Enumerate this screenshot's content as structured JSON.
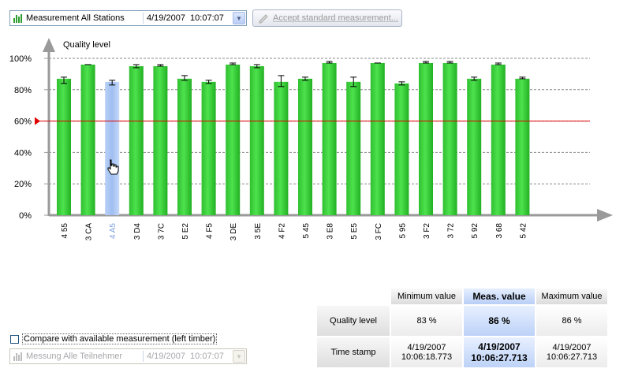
{
  "top": {
    "station_combo": "Measurement All Stations",
    "datetime_combo": "4/19/2007  10:07:07",
    "accept_button": "Accept standard measurement..."
  },
  "chart_data": {
    "type": "bar",
    "ylabel": "Quality level",
    "ylim": [
      0,
      100
    ],
    "y_ticks": [
      "0%",
      "20%",
      "40%",
      "60%",
      "80%",
      "100%"
    ],
    "threshold": 60,
    "threshold_color": "#e00000",
    "bar_color": "#33cc33",
    "selected_bar_color": "#a9c6f5",
    "selected_category": "4 A5",
    "grid": "dashed horizontal",
    "categories": [
      "4 55",
      "3 CA",
      "4 A5",
      "3 D4",
      "3 7C",
      "5 E2",
      "4 F5",
      "3 DE",
      "3 5E",
      "4 F2",
      "5 45",
      "3 E8",
      "5 E5",
      "3 FC",
      "5 95",
      "3 F2",
      "3 72",
      "5 92",
      "3 68",
      "5 42"
    ],
    "values": [
      87,
      96,
      85,
      95,
      95,
      87,
      85,
      96,
      95,
      85,
      87,
      97,
      85,
      97,
      84,
      97,
      97,
      87,
      96,
      87
    ],
    "error_low": [
      84,
      96,
      83,
      94,
      95,
      86,
      84,
      96,
      94,
      82,
      86,
      97,
      82,
      97,
      83,
      97,
      97,
      86,
      96,
      87
    ],
    "error_high": [
      88,
      96,
      86,
      96,
      96,
      89,
      86,
      97,
      96,
      89,
      88,
      98,
      88,
      97,
      85,
      98,
      98,
      88,
      97,
      88
    ]
  },
  "stats": {
    "headers": [
      "Minimum value",
      "Meas. value",
      "Maximum value"
    ],
    "row_labels": [
      "Quality level",
      "Time stamp"
    ],
    "quality": [
      "83 %",
      "86 %",
      "86 %"
    ],
    "timestamp_date": [
      "4/19/2007",
      "4/19/2007",
      "4/19/2007"
    ],
    "timestamp_time": [
      "10:06:18.773",
      "10:06:27.713",
      "10:06:27.713"
    ]
  },
  "compare": {
    "checkbox_label": "Compare with available measurement (left timber)",
    "checked": false,
    "station_combo": "Messung Alle Teilnehmer",
    "datetime_combo": "4/19/2007  10:07:07"
  }
}
